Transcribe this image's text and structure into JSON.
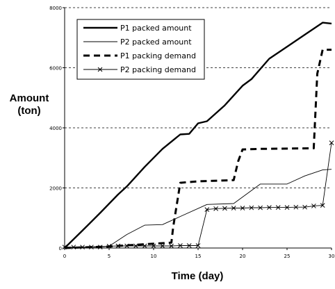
{
  "chart_data": {
    "type": "line",
    "title": "",
    "ylabel_line1": "Amount",
    "ylabel_line2": "(ton)",
    "xlabel": "Time (day)",
    "xlim": [
      0,
      30
    ],
    "ylim": [
      0,
      8000
    ],
    "xticks": [
      "0",
      "5",
      "10",
      "15",
      "20",
      "25",
      "30"
    ],
    "yticks": [
      "0",
      "2000",
      "4000",
      "6000",
      "8000"
    ],
    "grid": "horizontal dashed",
    "legend_position": "top-left",
    "series": [
      {
        "name": "P1 packed amount",
        "style": "thick-solid",
        "color": "#000000",
        "x": [
          0,
          2,
          4,
          6,
          7,
          9,
          11,
          13,
          14,
          15,
          16,
          18,
          20,
          21,
          23,
          25,
          27,
          28,
          29,
          30
        ],
        "y": [
          0,
          580,
          1170,
          1780,
          2050,
          2700,
          3300,
          3780,
          3800,
          4150,
          4220,
          4750,
          5400,
          5620,
          6300,
          6700,
          7100,
          7300,
          7500,
          7470
        ]
      },
      {
        "name": "P2 packed amount",
        "style": "thin-solid",
        "color": "#000000",
        "x": [
          0,
          5,
          7,
          9,
          11,
          13,
          16,
          19,
          22,
          24,
          25,
          27,
          29,
          30
        ],
        "y": [
          0,
          60,
          450,
          760,
          780,
          1050,
          1450,
          1480,
          2130,
          2130,
          2130,
          2400,
          2600,
          2620
        ]
      },
      {
        "name": "P1 packing demand",
        "style": "thick-dashed",
        "color": "#000000",
        "x": [
          0,
          5,
          12,
          12.2,
          13,
          15,
          19,
          19.5,
          20,
          22,
          28,
          28.4,
          29,
          30
        ],
        "y": [
          0,
          50,
          180,
          700,
          2170,
          2220,
          2260,
          2880,
          3280,
          3300,
          3320,
          5800,
          6600,
          6600
        ]
      },
      {
        "name": "P2 packing demand",
        "style": "thin-solid-cross",
        "color": "#000000",
        "x": [
          0,
          1,
          2,
          3,
          4,
          5,
          6,
          7,
          8,
          9,
          10,
          11,
          12,
          13,
          14,
          15,
          16,
          17,
          18,
          19,
          20,
          21,
          22,
          23,
          24,
          25,
          26,
          27,
          28,
          29,
          30
        ],
        "y": [
          30,
          30,
          30,
          30,
          30,
          60,
          70,
          70,
          70,
          70,
          70,
          70,
          70,
          80,
          80,
          80,
          1280,
          1310,
          1320,
          1330,
          1330,
          1340,
          1340,
          1350,
          1350,
          1350,
          1360,
          1360,
          1400,
          1420,
          3500
        ]
      }
    ]
  }
}
